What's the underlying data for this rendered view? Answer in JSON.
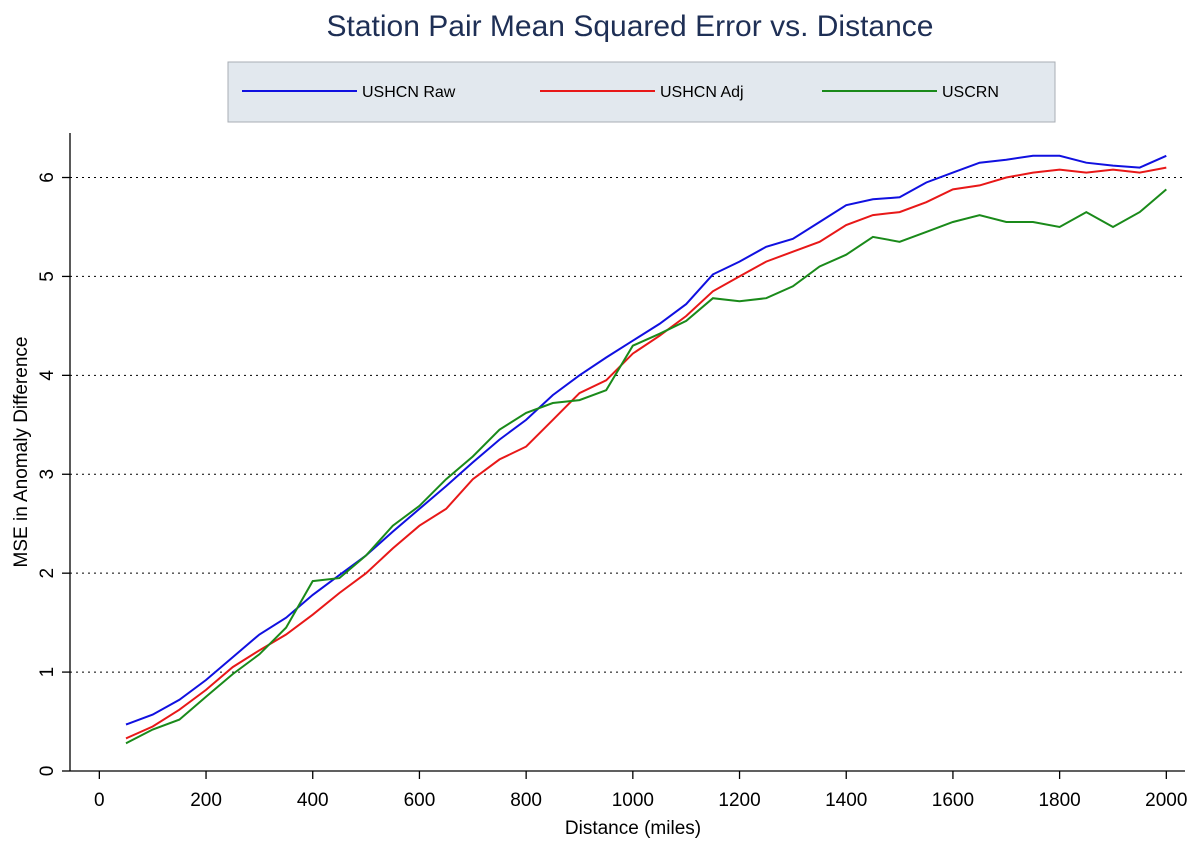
{
  "chart_data": {
    "type": "line",
    "title": "Station Pair Mean Squared Error vs. Distance",
    "x_label": "Distance (miles)",
    "y_label": "MSE in Anomaly Difference",
    "x": [
      50,
      100,
      150,
      200,
      250,
      300,
      350,
      400,
      450,
      500,
      550,
      600,
      650,
      700,
      750,
      800,
      850,
      900,
      950,
      1000,
      1050,
      1100,
      1150,
      1200,
      1250,
      1300,
      1350,
      1400,
      1450,
      1500,
      1550,
      1600,
      1650,
      1700,
      1750,
      1800,
      1850,
      1900,
      1950,
      2000
    ],
    "series": [
      {
        "name": "USHCN Raw",
        "color": "#1010e0",
        "values": [
          0.47,
          0.57,
          0.72,
          0.92,
          1.15,
          1.38,
          1.55,
          1.78,
          1.98,
          2.18,
          2.42,
          2.65,
          2.88,
          3.12,
          3.35,
          3.55,
          3.8,
          4.0,
          4.18,
          4.35,
          4.52,
          4.72,
          5.02,
          5.15,
          5.3,
          5.38,
          5.55,
          5.72,
          5.78,
          5.8,
          5.95,
          6.05,
          6.15,
          6.18,
          6.22,
          6.22,
          6.15,
          6.12,
          6.1,
          6.22
        ]
      },
      {
        "name": "USHCN Adj",
        "color": "#e81818",
        "values": [
          0.33,
          0.45,
          0.62,
          0.82,
          1.05,
          1.22,
          1.38,
          1.58,
          1.8,
          2.0,
          2.25,
          2.48,
          2.65,
          2.95,
          3.15,
          3.28,
          3.55,
          3.82,
          3.95,
          4.22,
          4.4,
          4.6,
          4.85,
          5.0,
          5.15,
          5.25,
          5.35,
          5.52,
          5.62,
          5.65,
          5.75,
          5.88,
          5.92,
          6.0,
          6.05,
          6.08,
          6.05,
          6.08,
          6.05,
          6.1
        ]
      },
      {
        "name": "USCRN",
        "color": "#1a8a1a",
        "values": [
          0.28,
          0.42,
          0.52,
          0.75,
          0.98,
          1.18,
          1.45,
          1.92,
          1.95,
          2.18,
          2.48,
          2.68,
          2.95,
          3.18,
          3.45,
          3.62,
          3.72,
          3.75,
          3.85,
          4.3,
          4.42,
          4.55,
          4.78,
          4.75,
          4.78,
          4.9,
          5.1,
          5.22,
          5.4,
          5.35,
          5.45,
          5.55,
          5.62,
          5.55,
          5.55,
          5.5,
          5.65,
          5.5,
          5.65,
          5.88
        ]
      }
    ],
    "xlim": [
      -55,
      2035
    ],
    "xticks": [
      0,
      200,
      400,
      600,
      800,
      1000,
      1200,
      1400,
      1600,
      1800,
      2000
    ],
    "ylim": [
      0,
      6.45
    ],
    "yticks": [
      0,
      1,
      2,
      3,
      4,
      5,
      6
    ],
    "grid": true,
    "legend": "top"
  }
}
